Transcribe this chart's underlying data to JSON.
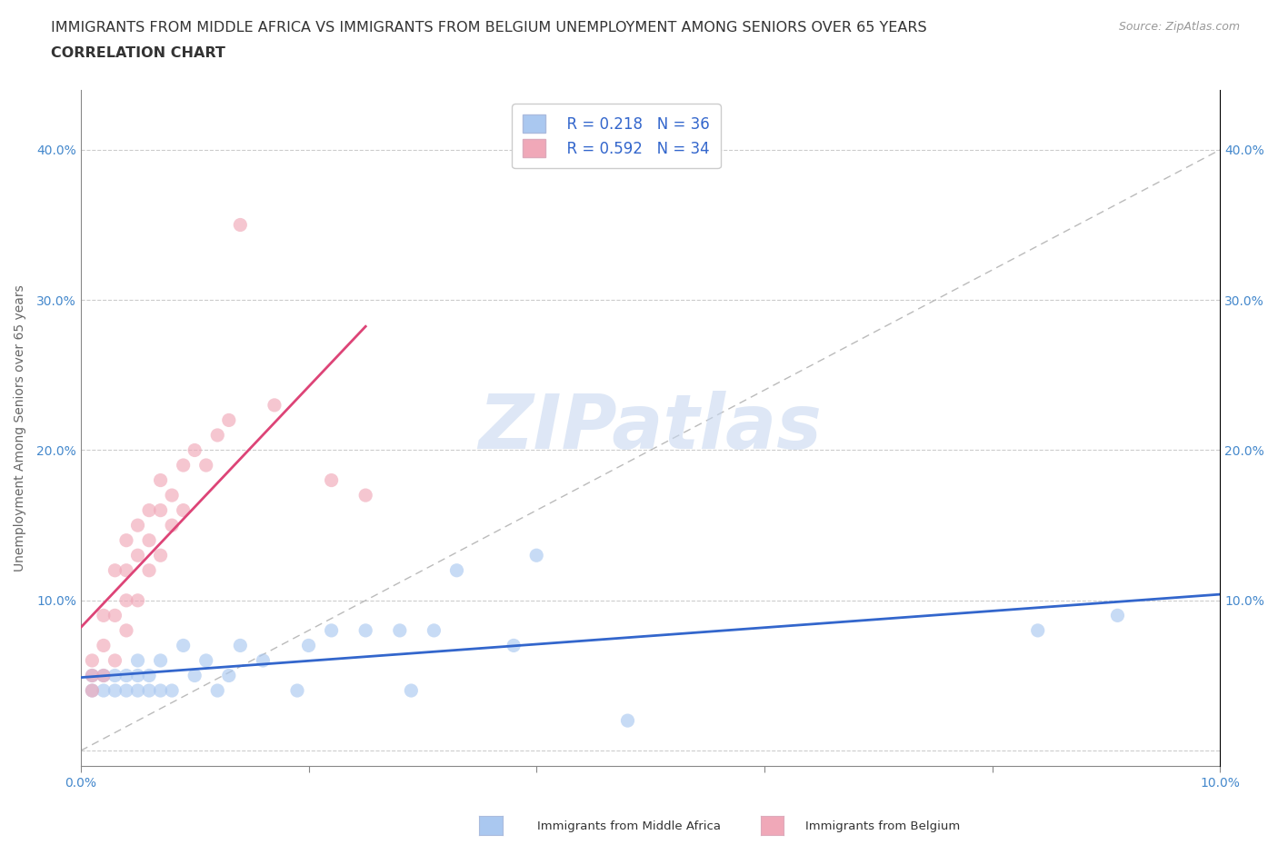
{
  "title_line1": "IMMIGRANTS FROM MIDDLE AFRICA VS IMMIGRANTS FROM BELGIUM UNEMPLOYMENT AMONG SENIORS OVER 65 YEARS",
  "title_line2": "CORRELATION CHART",
  "source": "Source: ZipAtlas.com",
  "ylabel": "Unemployment Among Seniors over 65 years",
  "xlim": [
    0.0,
    0.1
  ],
  "ylim": [
    -0.01,
    0.44
  ],
  "xtick_vals": [
    0.0,
    0.02,
    0.04,
    0.06,
    0.08,
    0.1
  ],
  "xtick_labels": [
    "0.0%",
    "",
    "",
    "",
    "",
    "10.0%"
  ],
  "ytick_vals": [
    0.0,
    0.1,
    0.2,
    0.3,
    0.4
  ],
  "ytick_labels": [
    "",
    "10.0%",
    "20.0%",
    "30.0%",
    "40.0%"
  ],
  "legend_R1": "R = 0.218",
  "legend_N1": "N = 36",
  "legend_R2": "R = 0.592",
  "legend_N2": "N = 34",
  "color_blue": "#aac8f0",
  "color_pink": "#f0a8b8",
  "line_blue": "#3366cc",
  "line_pink": "#dd4477",
  "diagonal_color": "#bbbbbb",
  "watermark_text": "ZIPatlas",
  "blue_x": [
    0.001,
    0.001,
    0.002,
    0.002,
    0.003,
    0.003,
    0.004,
    0.004,
    0.005,
    0.005,
    0.005,
    0.006,
    0.006,
    0.007,
    0.007,
    0.008,
    0.009,
    0.01,
    0.011,
    0.012,
    0.013,
    0.014,
    0.016,
    0.019,
    0.02,
    0.022,
    0.025,
    0.028,
    0.029,
    0.031,
    0.033,
    0.038,
    0.04,
    0.048,
    0.084,
    0.091
  ],
  "blue_y": [
    0.04,
    0.05,
    0.04,
    0.05,
    0.04,
    0.05,
    0.04,
    0.05,
    0.04,
    0.05,
    0.06,
    0.04,
    0.05,
    0.04,
    0.06,
    0.04,
    0.07,
    0.05,
    0.06,
    0.04,
    0.05,
    0.07,
    0.06,
    0.04,
    0.07,
    0.08,
    0.08,
    0.08,
    0.04,
    0.08,
    0.12,
    0.07,
    0.13,
    0.02,
    0.08,
    0.09
  ],
  "pink_x": [
    0.001,
    0.001,
    0.001,
    0.002,
    0.002,
    0.002,
    0.003,
    0.003,
    0.003,
    0.004,
    0.004,
    0.004,
    0.004,
    0.005,
    0.005,
    0.005,
    0.006,
    0.006,
    0.006,
    0.007,
    0.007,
    0.007,
    0.008,
    0.008,
    0.009,
    0.009,
    0.01,
    0.011,
    0.012,
    0.013,
    0.014,
    0.017,
    0.022,
    0.025
  ],
  "pink_y": [
    0.04,
    0.05,
    0.06,
    0.05,
    0.07,
    0.09,
    0.06,
    0.09,
    0.12,
    0.08,
    0.1,
    0.12,
    0.14,
    0.1,
    0.13,
    0.15,
    0.12,
    0.14,
    0.16,
    0.13,
    0.16,
    0.18,
    0.15,
    0.17,
    0.16,
    0.19,
    0.2,
    0.19,
    0.21,
    0.22,
    0.35,
    0.23,
    0.18,
    0.17
  ],
  "title_fontsize": 11.5,
  "source_fontsize": 9,
  "axis_label_fontsize": 10,
  "tick_fontsize": 10,
  "legend_fontsize": 12,
  "watermark_fontsize": 60,
  "scatter_size": 120,
  "scatter_alpha": 0.65
}
